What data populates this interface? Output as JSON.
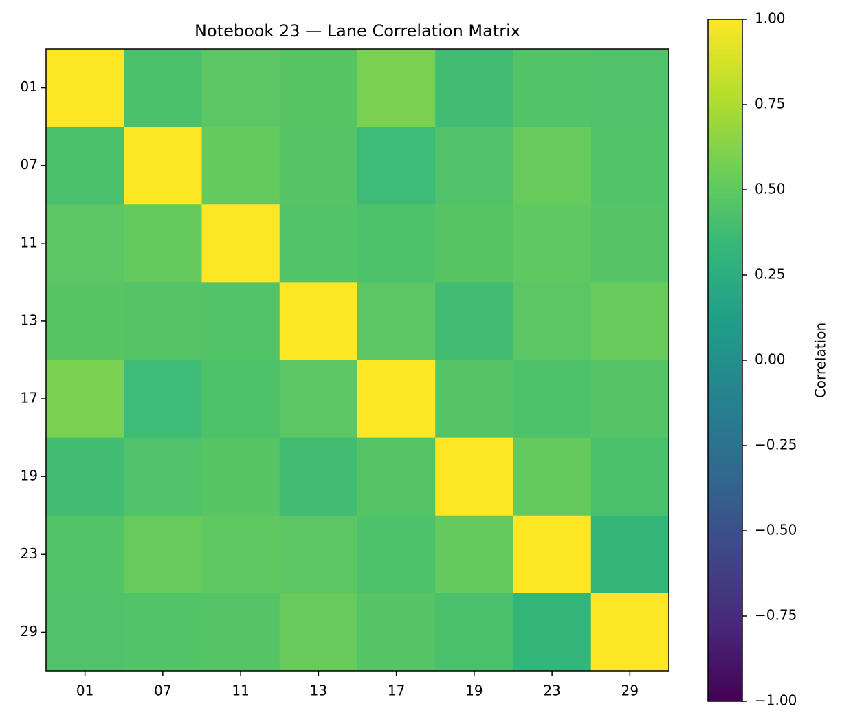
{
  "chart_data": {
    "type": "heatmap",
    "title": "Notebook 23 — Lane Correlation Matrix",
    "x_categories": [
      "01",
      "07",
      "11",
      "13",
      "17",
      "19",
      "23",
      "29"
    ],
    "y_categories": [
      "01",
      "07",
      "11",
      "13",
      "17",
      "19",
      "23",
      "29"
    ],
    "z": [
      [
        1.0,
        0.42,
        0.48,
        0.47,
        0.59,
        0.38,
        0.45,
        0.44
      ],
      [
        0.42,
        1.0,
        0.52,
        0.46,
        0.37,
        0.44,
        0.53,
        0.45
      ],
      [
        0.48,
        0.52,
        1.0,
        0.45,
        0.43,
        0.47,
        0.5,
        0.46
      ],
      [
        0.47,
        0.46,
        0.45,
        1.0,
        0.48,
        0.38,
        0.48,
        0.53
      ],
      [
        0.59,
        0.37,
        0.43,
        0.48,
        1.0,
        0.46,
        0.43,
        0.46
      ],
      [
        0.38,
        0.44,
        0.47,
        0.38,
        0.46,
        1.0,
        0.52,
        0.42
      ],
      [
        0.45,
        0.53,
        0.5,
        0.48,
        0.43,
        0.52,
        1.0,
        0.32
      ],
      [
        0.44,
        0.45,
        0.46,
        0.53,
        0.46,
        0.42,
        0.32,
        1.0
      ]
    ],
    "colormap": "viridis",
    "zlim": [
      -1,
      1
    ],
    "colorbar_label": "Correlation",
    "colorbar_ticks": [
      {
        "value": -1,
        "label": "−1.00"
      },
      {
        "value": -0.75,
        "label": "−0.75"
      },
      {
        "value": -0.5,
        "label": "−0.50"
      },
      {
        "value": -0.25,
        "label": "−0.25"
      },
      {
        "value": 0,
        "label": "0.00"
      },
      {
        "value": 0.25,
        "label": "0.25"
      },
      {
        "value": 0.5,
        "label": "0.50"
      },
      {
        "value": 0.75,
        "label": "0.75"
      },
      {
        "value": 1,
        "label": "1.00"
      }
    ]
  }
}
